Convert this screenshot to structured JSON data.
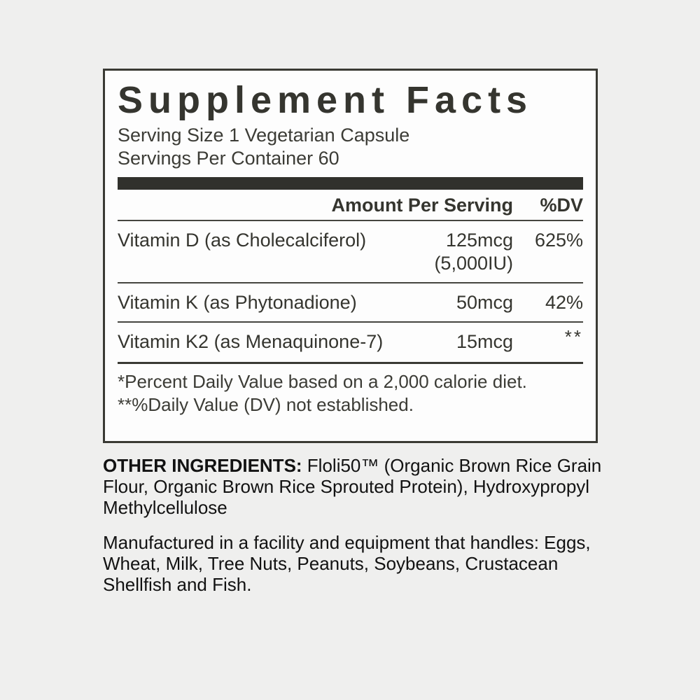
{
  "panel": {
    "title": "Supplement Facts",
    "serving_size": "Serving Size 1 Vegetarian Capsule",
    "servings_per_container": "Servings Per Container 60",
    "header": {
      "amount": "Amount Per Serving",
      "dv": "%DV"
    },
    "rows": [
      {
        "name": "Vitamin D (as Cholecalciferol)",
        "amount": "125mcg",
        "amount_alt": "(5,000IU)",
        "dv": "625%"
      },
      {
        "name": "Vitamin K (as Phytonadione)",
        "amount": "50mcg",
        "dv": "42%"
      },
      {
        "name": "Vitamin K2 (as Menaquinone-7)",
        "amount": "15mcg",
        "dv": "**"
      }
    ],
    "footnotes": [
      "*Percent Daily Value based on a 2,000 calorie diet.",
      "**%Daily Value (DV) not established."
    ]
  },
  "other_ingredients": {
    "label": "OTHER INGREDIENTS:",
    "text": " Floli50™ (Organic Brown Rice Grain Flour, Organic Brown Rice Sprouted Protein), Hydroxypropyl Methylcellulose"
  },
  "allergen_notice": "Manufactured in a facility and equipment that handles: Eggs, Wheat, Milk, Tree Nuts, Peanuts, Soybeans, Crustacean Shellfish and Fish.",
  "colors": {
    "page_background": "#efefee",
    "panel_background": "#fdfdfd",
    "panel_text": "#35352f",
    "bar": "#31312c",
    "body_text": "#121212"
  }
}
